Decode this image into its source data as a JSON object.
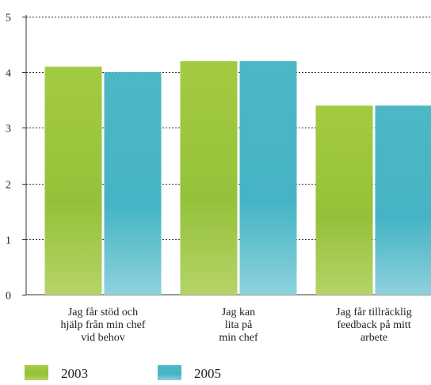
{
  "chart_data": {
    "type": "bar",
    "title": "",
    "xlabel": "",
    "ylabel": "",
    "ylim": [
      0,
      5
    ],
    "yticks": [
      0,
      1,
      2,
      3,
      4,
      5
    ],
    "grid": true,
    "legend_position": "bottom-left",
    "categories": [
      [
        "Jag får stöd och",
        "hjälp från min chef",
        "vid behov"
      ],
      [
        "Jag kan",
        "lita på",
        "min chef"
      ],
      [
        "Jag får tillräcklig",
        "feedback på mitt",
        "arbete"
      ]
    ],
    "series": [
      {
        "name": "2003",
        "color": "#9dc63c",
        "values": [
          4.1,
          4.2,
          3.4
        ]
      },
      {
        "name": "2005",
        "color": "#4ab9c8",
        "values": [
          4.0,
          4.2,
          3.4
        ]
      }
    ]
  }
}
